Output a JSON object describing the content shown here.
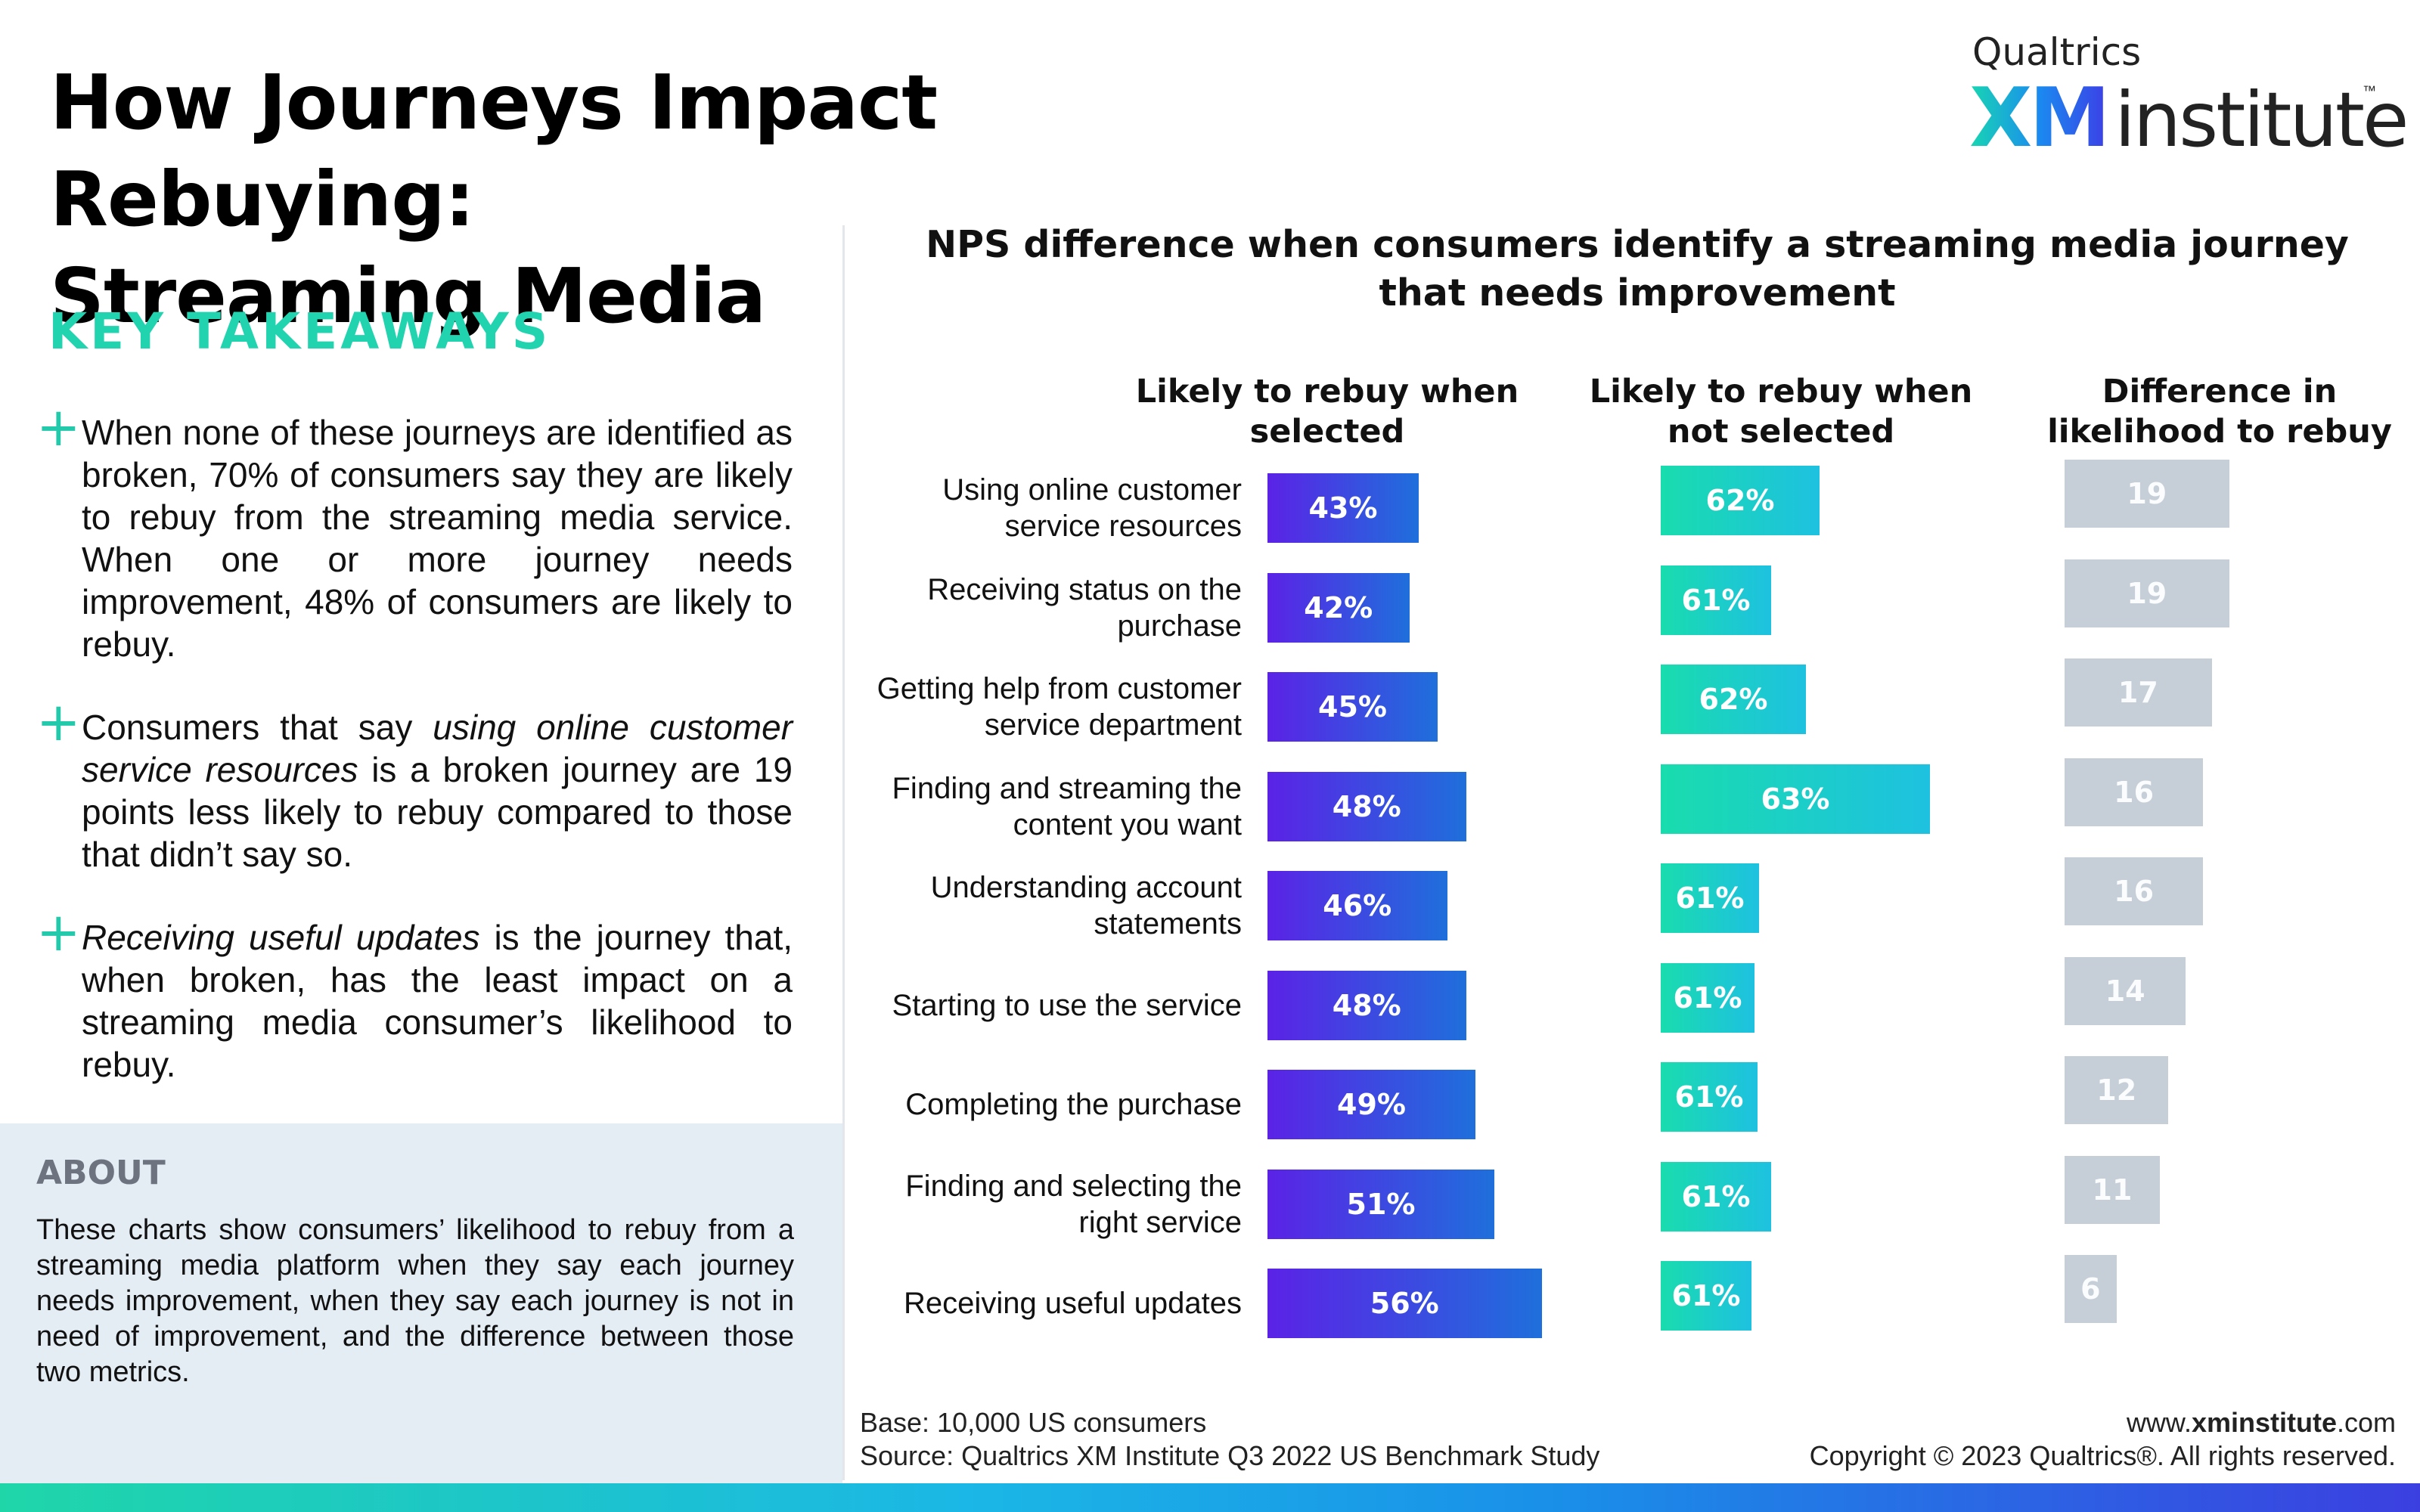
{
  "title_line1": "How Journeys Impact Rebuying:",
  "title_line2": "Streaming Media",
  "logo": {
    "brand": "Qualtrics",
    "xm": "XM",
    "institute": "institute",
    "tm": "™",
    "colors": [
      "#18d6b2",
      "#1a8bf0",
      "#3c3fe6"
    ]
  },
  "takeaways": {
    "heading": "KEY TAKEAWAYS",
    "items": [
      {
        "text": "When none of these journeys are identified as broken, 70% of consumers say they are likely to rebuy from the streaming media service. When one or more journey needs improvement, 48% of consumers are likely to rebuy."
      },
      {
        "pre": "Consumers that say ",
        "em": "using online customer service resources",
        "post": " is a broken journey are 19 points less likely to rebuy compared to those that didn’t say so."
      },
      {
        "pre": "",
        "em": "Receiving useful updates",
        "post": " is the journey that, when broken, has the least impact on a streaming media consumer’s likelihood to rebuy."
      }
    ]
  },
  "about": {
    "heading": "ABOUT",
    "text": "These charts show consumers’ likelihood to rebuy from a streaming media platform when they say each journey needs improvement, when they say each journey is not in need of improvement, and the difference between those two metrics."
  },
  "chart_data": {
    "type": "bar",
    "title_line1": "NPS difference when consumers identify a streaming media journey",
    "title_line2": "that needs improvement",
    "columns": {
      "selected": {
        "line1": "Likely to rebuy when",
        "line2": "selected"
      },
      "not_selected": {
        "line1": "Likely to rebuy when",
        "line2": "not selected"
      },
      "difference": {
        "line1": "Difference in",
        "line2": "likelihood to rebuy"
      }
    },
    "categories": [
      [
        "Using online customer",
        "service resources"
      ],
      [
        "Receiving status on the",
        "purchase"
      ],
      [
        "Getting help from customer",
        "service department"
      ],
      [
        "Finding and streaming the",
        "content you want"
      ],
      [
        "Understanding account",
        "statements"
      ],
      [
        "Starting to use the service"
      ],
      [
        "Completing the purchase"
      ],
      [
        "Finding and selecting the",
        "right service"
      ],
      [
        "Receiving useful updates"
      ]
    ],
    "series": [
      {
        "key": "selected",
        "values": [
          43,
          42,
          45,
          48,
          46,
          48,
          49,
          51,
          56
        ],
        "labels": [
          "43%",
          "42%",
          "45%",
          "48%",
          "46%",
          "48%",
          "49%",
          "51%",
          "56%"
        ],
        "colors": [
          "#5b22e6",
          "#1f6fdc"
        ]
      },
      {
        "key": "not_selected",
        "values": [
          62,
          61,
          62,
          63,
          61,
          61,
          61,
          61,
          61
        ],
        "labels": [
          "62%",
          "61%",
          "62%",
          "63%",
          "61%",
          "61%",
          "61%",
          "61%",
          "61%"
        ],
        "colors": [
          "#19dcae",
          "#1ec1e0"
        ]
      },
      {
        "key": "difference",
        "values": [
          19,
          19,
          17,
          16,
          16,
          14,
          12,
          11,
          6
        ],
        "labels": [
          "19",
          "19",
          "17",
          "16",
          "16",
          "14",
          "12",
          "11",
          "6"
        ],
        "colors": [
          "#c6cfd8"
        ]
      }
    ]
  },
  "footer": {
    "base": "Base: 10,000 US consumers",
    "source": "Source: Qualtrics XM Institute Q3 2022 US Benchmark Study",
    "url_pre": "www.",
    "url_bold": "xminstitute",
    "url_post": ".com",
    "copyright": "Copyright © 2023 Qualtrics®. All rights reserved."
  }
}
